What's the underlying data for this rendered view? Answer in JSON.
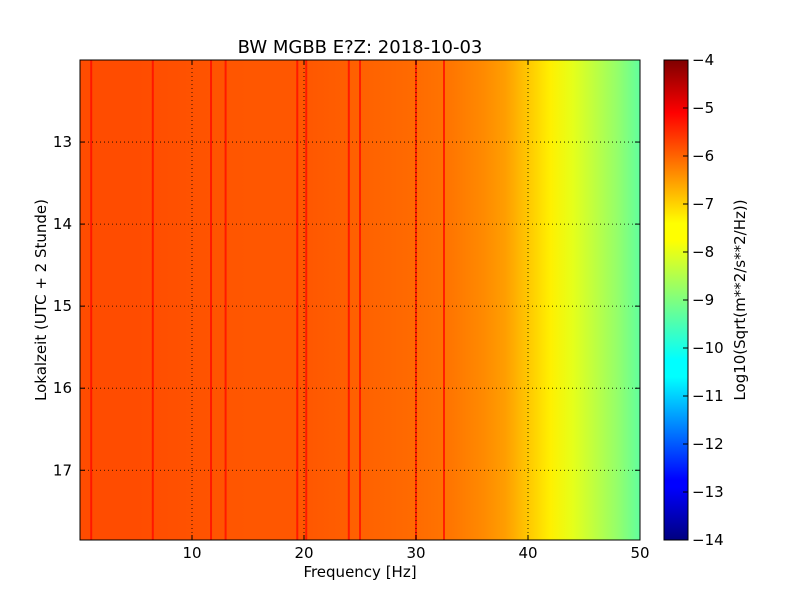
{
  "chart_data": {
    "type": "heatmap",
    "title": "BW MGBB E?Z: 2018-10-03",
    "xlabel": "Frequency [Hz]",
    "ylabel": "Lokalzeit (UTC + 2 Stunde)",
    "xlim": [
      0,
      50
    ],
    "ylim": [
      12.0,
      17.85
    ],
    "y_inverted": true,
    "x_ticks": [
      10,
      20,
      30,
      40,
      50
    ],
    "x_tick_labels": [
      "10",
      "20",
      "30",
      "40",
      "50"
    ],
    "y_ticks": [
      13,
      14,
      15,
      16,
      17
    ],
    "y_tick_labels": [
      "13",
      "14",
      "15",
      "16",
      "17"
    ],
    "grid": true,
    "colormap": "jet",
    "colorbar": {
      "label": "Log10(Sqrt(m**2/s**2/Hz))",
      "min": -14,
      "max": -4,
      "ticks": [
        -4,
        -5,
        -6,
        -7,
        -8,
        -9,
        -10,
        -11,
        -12,
        -13,
        -14
      ],
      "tick_labels": [
        "−4",
        "−5",
        "−6",
        "−7",
        "−8",
        "−9",
        "−10",
        "−11",
        "−12",
        "−13",
        "−14"
      ]
    },
    "spectrum_profile": [
      [
        0,
        -6.0
      ],
      [
        5,
        -6.0
      ],
      [
        10,
        -6.05
      ],
      [
        15,
        -6.1
      ],
      [
        20,
        -6.1
      ],
      [
        25,
        -6.2
      ],
      [
        30,
        -6.3
      ],
      [
        33,
        -6.4
      ],
      [
        36,
        -6.6
      ],
      [
        38,
        -6.8
      ],
      [
        40,
        -7.2
      ],
      [
        42,
        -7.6
      ],
      [
        44,
        -8.0
      ],
      [
        46,
        -8.4
      ],
      [
        48,
        -8.8
      ],
      [
        50,
        -9.3
      ]
    ],
    "spectral_lines_hz": [
      1.0,
      6.5,
      11.7,
      13.0,
      19.4,
      20.2,
      24.0,
      25.0,
      30.0,
      32.5
    ],
    "spectral_line_level": -5.3
  }
}
